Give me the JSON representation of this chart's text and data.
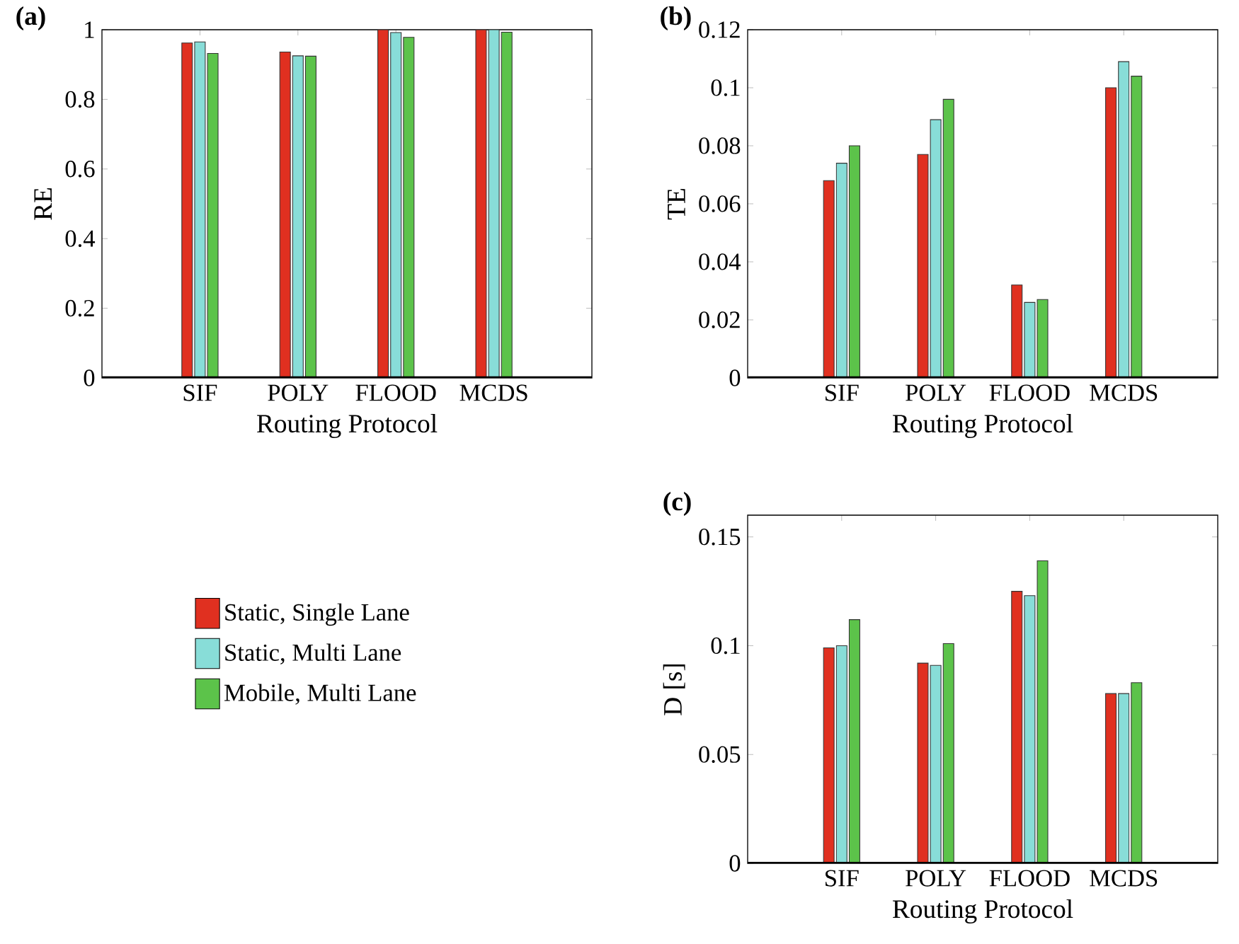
{
  "chart_data": [
    {
      "type": "bar",
      "title": "(a)",
      "xlabel": "Routing Protocol",
      "ylabel": "RE",
      "categories": [
        "SIF",
        "POLY",
        "FLOOD",
        "MCDS"
      ],
      "ylim": [
        0,
        1
      ],
      "yticks": [
        0,
        0.2,
        0.4,
        0.6,
        0.8,
        1
      ],
      "legend": "bottom",
      "series": [
        {
          "name": "Static, Single Lane",
          "color": "#e03020",
          "values": [
            0.962,
            0.936,
            1.0,
            1.0
          ]
        },
        {
          "name": "Static, Multi Lane",
          "color": "#88ddd8",
          "values": [
            0.965,
            0.925,
            0.992,
            1.0
          ]
        },
        {
          "name": "Mobile, Multi Lane",
          "color": "#5cc34a",
          "values": [
            0.932,
            0.924,
            0.978,
            0.993
          ]
        }
      ]
    },
    {
      "type": "bar",
      "title": "(b)",
      "xlabel": "Routing Protocol",
      "ylabel": "TE",
      "categories": [
        "SIF",
        "POLY",
        "FLOOD",
        "MCDS"
      ],
      "ylim": [
        0,
        0.12
      ],
      "yticks": [
        0,
        0.02,
        0.04,
        0.06,
        0.08,
        0.1,
        0.12
      ],
      "series": [
        {
          "color": "#e03020",
          "values": [
            0.068,
            0.077,
            0.032,
            0.1
          ]
        },
        {
          "color": "#88ddd8",
          "values": [
            0.074,
            0.089,
            0.026,
            0.109
          ]
        },
        {
          "color": "#5cc34a",
          "values": [
            0.08,
            0.096,
            0.027,
            0.104
          ]
        }
      ]
    },
    {
      "type": "bar",
      "title": "(c)",
      "xlabel": "Routing Protocol",
      "ylabel": "D [s]",
      "categories": [
        "SIF",
        "POLY",
        "FLOOD",
        "MCDS"
      ],
      "ylim": [
        0,
        0.16
      ],
      "yticks": [
        0,
        0.05,
        0.1,
        0.15
      ],
      "series": [
        {
          "color": "#e03020",
          "values": [
            0.099,
            0.092,
            0.125,
            0.078
          ]
        },
        {
          "color": "#88ddd8",
          "values": [
            0.1,
            0.091,
            0.123,
            0.078
          ]
        },
        {
          "color": "#5cc34a",
          "values": [
            0.112,
            0.101,
            0.139,
            0.083
          ]
        }
      ]
    }
  ]
}
